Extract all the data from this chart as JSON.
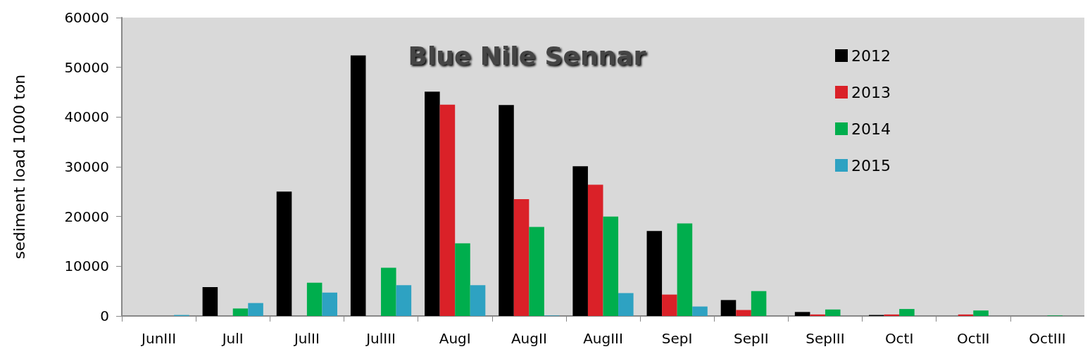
{
  "chart_data": {
    "type": "bar",
    "title": "Blue Nile Sennar",
    "ylabel": "sediment load 1000 ton",
    "categories": [
      "JunIII",
      "JulI",
      "JulII",
      "JulIII",
      "AugI",
      "AugII",
      "AugIII",
      "SepI",
      "SepII",
      "SepIII",
      "OctI",
      "OctII",
      "OctIII"
    ],
    "series": [
      {
        "name": "2012",
        "color": "#000000",
        "values": [
          null,
          5800,
          25000,
          52400,
          45100,
          42400,
          30100,
          17100,
          3200,
          800,
          200,
          null,
          null
        ]
      },
      {
        "name": "2013",
        "color": "#da2128",
        "values": [
          null,
          null,
          null,
          null,
          42500,
          23500,
          26400,
          4300,
          1200,
          300,
          300,
          300,
          null
        ]
      },
      {
        "name": "2014",
        "color": "#00ae4d",
        "values": [
          null,
          1500,
          6700,
          9700,
          14600,
          17900,
          20000,
          18600,
          5000,
          1300,
          1400,
          1100,
          100
        ]
      },
      {
        "name": "2015",
        "color": "#2ea2c2",
        "values": [
          200,
          2600,
          4700,
          6200,
          6200,
          100,
          4600,
          1900,
          null,
          null,
          null,
          null,
          null
        ]
      }
    ],
    "ylim": [
      0,
      60000
    ],
    "yticks": [
      0,
      10000,
      20000,
      30000,
      40000,
      50000,
      60000
    ],
    "grid": false,
    "legend": "top right"
  }
}
